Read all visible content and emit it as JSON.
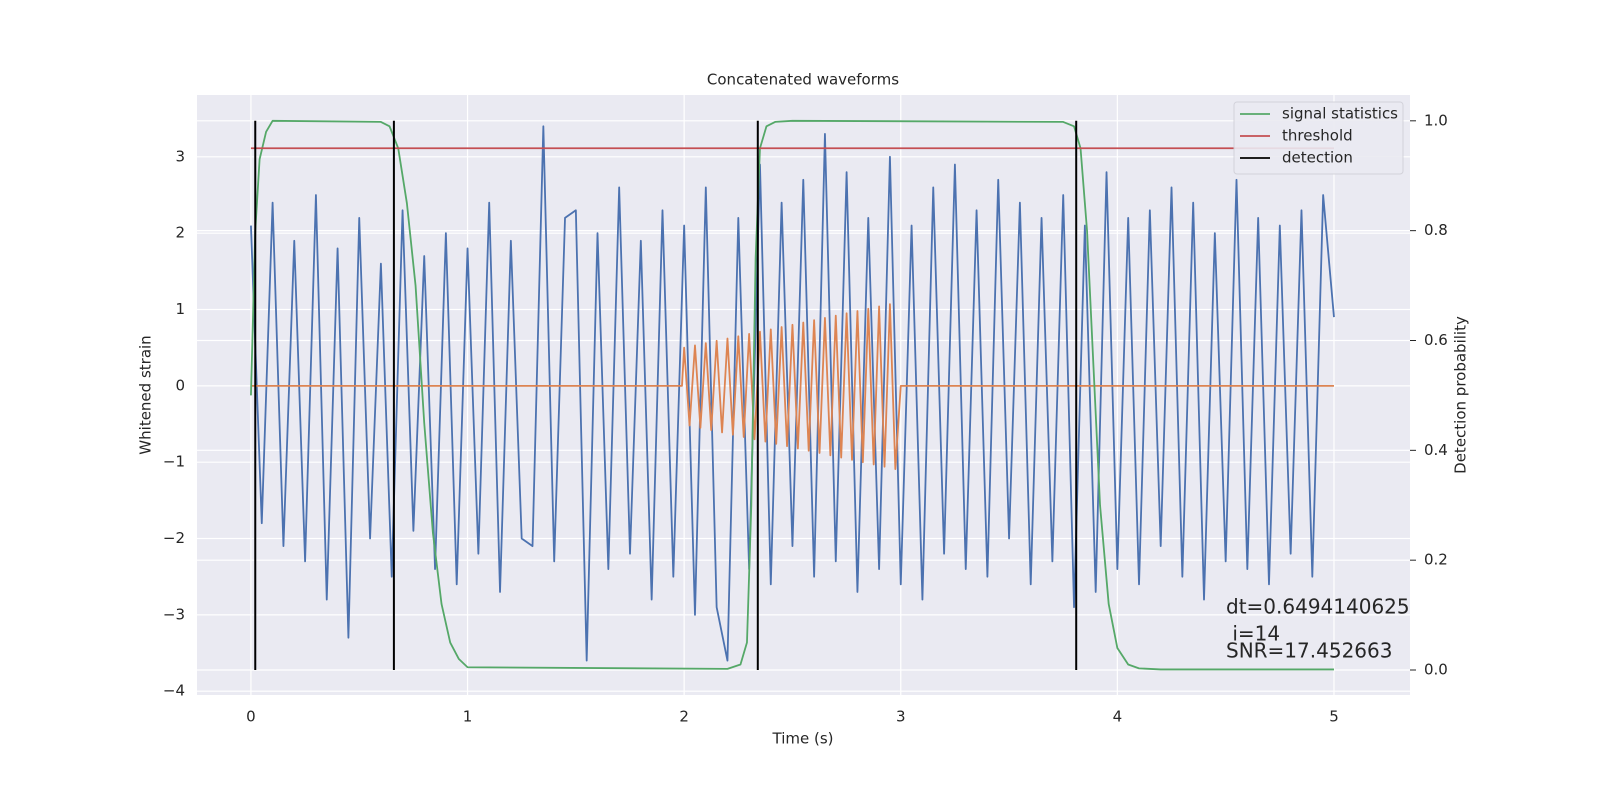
{
  "chart_data": {
    "type": "line",
    "title": "Concatenated waveforms",
    "xlabel": "Time (s)",
    "ylabel": "Whitened strain",
    "y2label": "Detection probability",
    "xlim": [
      -0.249,
      5.351
    ],
    "ylim": [
      -4.05,
      3.81
    ],
    "y2lim": [
      -0.0455,
      1.047
    ],
    "xticks": [
      0,
      1,
      2,
      3,
      4,
      5
    ],
    "yticks": [
      {
        "value": -4,
        "label": "−4"
      },
      {
        "value": -3,
        "label": "−3"
      },
      {
        "value": -2,
        "label": "−2"
      },
      {
        "value": -1,
        "label": "−1"
      },
      0,
      1,
      2,
      3
    ],
    "y2ticks": [
      {
        "value": 0,
        "label": "0.0"
      },
      0.2,
      0.4,
      0.6,
      0.8,
      {
        "value": 1,
        "label": "1.0"
      }
    ],
    "grid": true,
    "legend": "upper right",
    "annotation": [
      "dt=0.6494140625",
      " i=14",
      "SNR=17.452663"
    ],
    "series": [
      {
        "color": "#4c72b0",
        "x": [
          0,
          0.05,
          0.1,
          0.15,
          0.2,
          0.25,
          0.3,
          0.35,
          0.4,
          0.45,
          0.5,
          0.55,
          0.6,
          0.65,
          0.7,
          0.75,
          0.8,
          0.85,
          0.9,
          0.95,
          1,
          1.05,
          1.1,
          1.15,
          1.2,
          1.25,
          1.3,
          1.35,
          1.4,
          1.45,
          1.5,
          1.55,
          1.6,
          1.65,
          1.7,
          1.75,
          1.8,
          1.85,
          1.9,
          1.95,
          2,
          2.05,
          2.1,
          2.15,
          2.2,
          2.25,
          2.3,
          2.35,
          2.4,
          2.45,
          2.5,
          2.55,
          2.6,
          2.65,
          2.7,
          2.75,
          2.8,
          2.85,
          2.9,
          2.95,
          3,
          3.05,
          3.1,
          3.15,
          3.2,
          3.25,
          3.3,
          3.35,
          3.4,
          3.45,
          3.5,
          3.55,
          3.6,
          3.65,
          3.7,
          3.75,
          3.8,
          3.85,
          3.9,
          3.95,
          4,
          4.05,
          4.1,
          4.15,
          4.2,
          4.25,
          4.3,
          4.35,
          4.4,
          4.45,
          4.5,
          4.55,
          4.6,
          4.65,
          4.7,
          4.75,
          4.8,
          4.85,
          4.9,
          4.95,
          5
        ],
        "values": [
          2.1,
          -1.8,
          2.4,
          -2.1,
          1.9,
          -2.3,
          2.5,
          -2.8,
          1.8,
          -3.3,
          2.2,
          -2.0,
          1.6,
          -2.5,
          2.3,
          -1.9,
          1.7,
          -2.4,
          2.0,
          -2.6,
          1.8,
          -2.2,
          2.4,
          -2.7,
          1.9,
          -2.0,
          -2.1,
          3.4,
          -2.3,
          2.2,
          2.3,
          -3.6,
          2.0,
          -2.4,
          2.6,
          -2.2,
          1.9,
          -2.8,
          2.3,
          -2.5,
          2.1,
          -3.0,
          2.6,
          -2.9,
          -3.6,
          2.2,
          -2.4,
          2.9,
          -2.6,
          2.4,
          -2.1,
          2.7,
          -2.5,
          3.3,
          -2.3,
          2.8,
          -2.7,
          2.2,
          -2.4,
          3.0,
          -2.6,
          2.1,
          -2.8,
          2.6,
          -2.2,
          2.9,
          -2.4,
          2.3,
          -2.5,
          2.7,
          -2.0,
          2.4,
          -2.6,
          2.2,
          -2.3,
          2.5,
          -2.9,
          2.1,
          -2.7,
          2.8,
          -2.4,
          2.2,
          -2.6,
          2.3,
          -2.1,
          2.6,
          -2.5,
          2.4,
          -2.8,
          2.0,
          -2.3,
          2.7,
          -2.4,
          2.2,
          -2.6,
          2.1,
          -2.2,
          2.3,
          -2.5,
          2.5,
          0.9
        ]
      },
      {
        "color": "#dd8452",
        "x": [
          0,
          1.99,
          2,
          2.025,
          2.05,
          2.075,
          2.1,
          2.125,
          2.15,
          2.175,
          2.2,
          2.225,
          2.25,
          2.275,
          2.3,
          2.325,
          2.35,
          2.375,
          2.4,
          2.425,
          2.45,
          2.475,
          2.5,
          2.525,
          2.55,
          2.575,
          2.6,
          2.625,
          2.65,
          2.675,
          2.7,
          2.725,
          2.75,
          2.775,
          2.8,
          2.825,
          2.85,
          2.875,
          2.9,
          2.925,
          2.95,
          2.975,
          3,
          5
        ],
        "values": [
          0,
          0,
          0.5,
          -0.52,
          0.53,
          -0.55,
          0.56,
          -0.58,
          0.59,
          -0.61,
          0.62,
          -0.64,
          0.65,
          -0.67,
          0.68,
          -0.7,
          0.71,
          -0.73,
          0.74,
          -0.76,
          0.77,
          -0.79,
          0.8,
          -0.82,
          0.83,
          -0.85,
          0.86,
          -0.88,
          0.89,
          -0.91,
          0.92,
          -0.94,
          0.95,
          -0.97,
          0.98,
          -1.0,
          1.01,
          -1.03,
          1.04,
          -1.06,
          1.07,
          -1.09,
          0,
          0
        ]
      },
      {
        "name": "signal statistics",
        "color": "#55a868",
        "axis": "y2",
        "x": [
          0,
          0.02,
          0.04,
          0.07,
          0.1,
          0.6,
          0.64,
          0.68,
          0.72,
          0.76,
          0.8,
          0.84,
          0.88,
          0.92,
          0.96,
          1.0,
          2.2,
          2.26,
          2.29,
          2.31,
          2.33,
          2.35,
          2.38,
          2.42,
          2.5,
          3.75,
          3.8,
          3.83,
          3.86,
          3.89,
          3.92,
          3.96,
          4.0,
          4.05,
          4.1,
          4.2,
          5.0
        ],
        "values": [
          0.5,
          0.8,
          0.93,
          0.98,
          1.0,
          0.998,
          0.99,
          0.95,
          0.85,
          0.7,
          0.45,
          0.25,
          0.12,
          0.05,
          0.02,
          0.005,
          0.002,
          0.01,
          0.05,
          0.3,
          0.75,
          0.95,
          0.99,
          0.998,
          1.0,
          0.998,
          0.99,
          0.95,
          0.8,
          0.55,
          0.3,
          0.12,
          0.04,
          0.01,
          0.003,
          0.001,
          0.001
        ]
      },
      {
        "name": "threshold",
        "color": "#c44e52",
        "axis": "y2",
        "x": [
          0,
          5
        ],
        "values": [
          0.95,
          0.95
        ]
      },
      {
        "name": "detection",
        "color": "#000000",
        "axis": "y2",
        "kind": "vline",
        "x": [
          0.02,
          0.66,
          2.34,
          3.81
        ]
      }
    ]
  }
}
